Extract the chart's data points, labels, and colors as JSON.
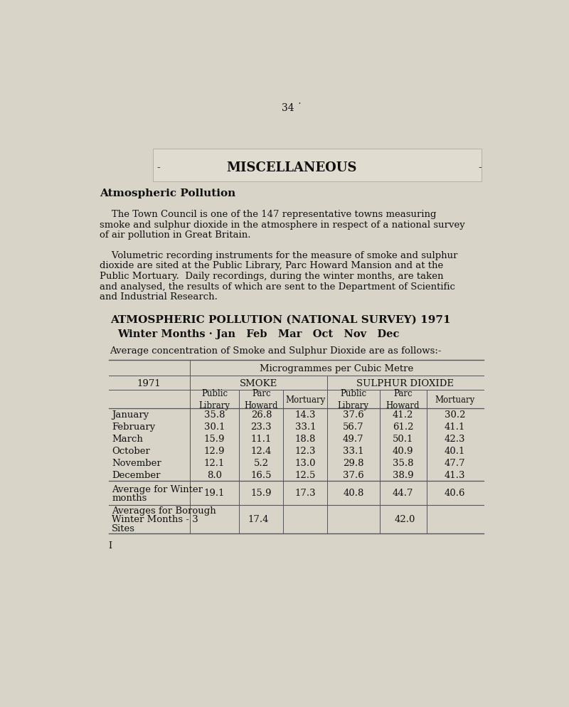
{
  "page_number": "34 ˙",
  "bg_color": "#d8d5c8",
  "box_bg": "#e8e6dc",
  "text_color": "#111111",
  "title_misc": "MISCELLANEOUS",
  "heading_pollution": "Atmospheric Pollution",
  "para1_indent": "    The Town Council is one of the 147 representative towns measuring",
  "para1_line2": "smoke and sulphur dioxide in the atmosphere in respect of a national survey",
  "para1_line3": "of air pollution in Great Britain.",
  "para2_indent": "    Volumetric recording instruments for the measure of smoke and sulphur",
  "para2_line2": "dioxide are sited at the Public Library, Parc Howard Mansion and at the",
  "para2_line3": "Public Mortuary.  Daily recordings, during the winter months, are taken",
  "para2_line4": "and analysed, the results of which are sent to the Department of Scientific",
  "para2_line5": "and Industrial Research.",
  "table_title": "ATMOSPHERIC POLLUTION (NATIONAL SURVEY) 1971",
  "table_subtitle": "Winter Months · Jan   Feb   Mar   Oct   Nov   Dec",
  "table_intro": "Average concentration of Smoke and Sulphur Dioxide are as follows:-",
  "col_header1": "Microgrammes per Cubic Metre",
  "col_header2_smoke": "SMOKE",
  "col_header2_so2": "SULPHUR DIOXIDE",
  "col_header3": [
    "Public\nLibrary",
    "Parc\nHoward",
    "Mortuary",
    "Public\nLibrary",
    "Parc\nHoward",
    "Mortuary"
  ],
  "row_label_col": "1971",
  "months": [
    "January",
    "February",
    "March",
    "October",
    "November",
    "December"
  ],
  "smoke_pub": [
    "35.8",
    "30.1",
    "15.9",
    "12.9",
    "12.1",
    "8.0"
  ],
  "smoke_parc": [
    "26.8",
    "23.3",
    "11.1",
    "12.4",
    "5.2",
    "16.5"
  ],
  "smoke_mort": [
    "14.3",
    "33.1",
    "18.8",
    "12.3",
    "13.0",
    "12.5"
  ],
  "so2_pub": [
    "37.6",
    "56.7",
    "49.7",
    "33.1",
    "29.8",
    "37.6"
  ],
  "so2_parc": [
    "41.2",
    "61.2",
    "50.1",
    "40.9",
    "35.8",
    "38.9"
  ],
  "so2_mort": [
    "30.2",
    "41.1",
    "42.3",
    "40.1",
    "47.7",
    "41.3"
  ],
  "avg_smoke_pub": "19.1",
  "avg_smoke_parc": "15.9",
  "avg_smoke_mort": "17.3",
  "avg_so2_pub": "40.8",
  "avg_so2_parc": "44.7",
  "avg_so2_mort": "40.6",
  "borough_smoke": "17.4",
  "borough_so2": "42.0",
  "avg_row_label1": "Average for Winter",
  "avg_row_label2": "months",
  "borough_row_label1": "Averages for Borough",
  "borough_row_label2": "Winter Months - 3",
  "borough_row_label3": "Sites",
  "footer": "I",
  "dash_left": "-",
  "dash_right": "-"
}
